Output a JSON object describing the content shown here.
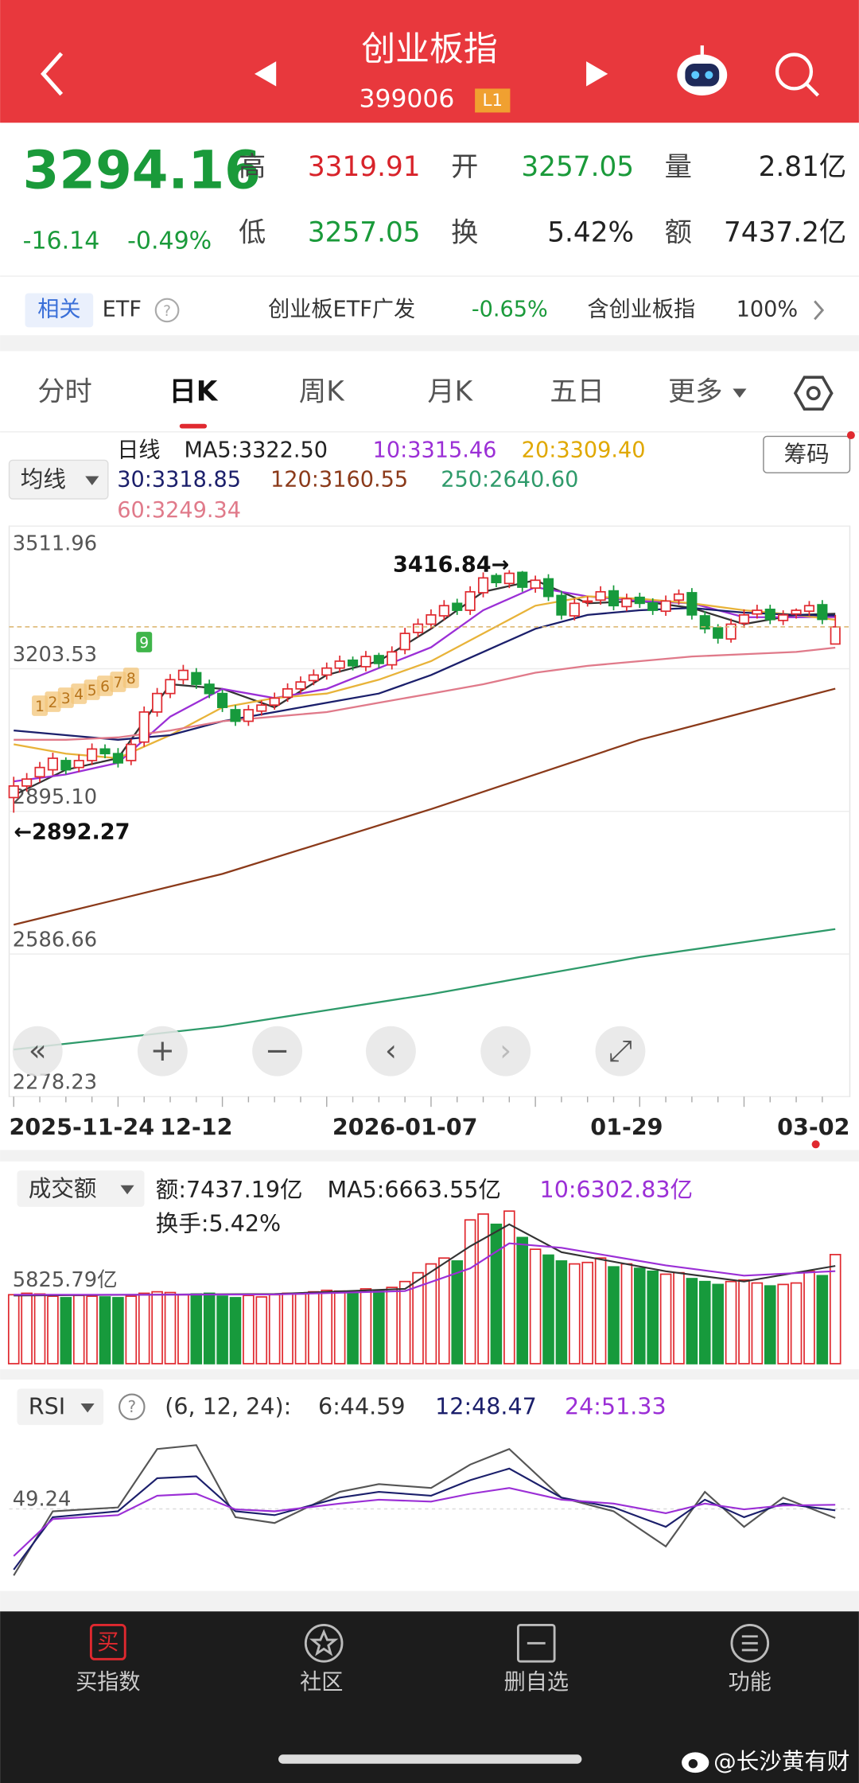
{
  "header": {
    "title": "创业板指",
    "code": "399006",
    "badge": "L1"
  },
  "quote": {
    "price": "3294.16",
    "change": "-16.14",
    "pct": "-0.49%",
    "row1": [
      {
        "label": "高",
        "value": "3319.91",
        "color": "#d8232a"
      },
      {
        "label": "开",
        "value": "3257.05",
        "color": "#1a9a3a"
      },
      {
        "label": "量",
        "value": "2.81亿",
        "color": "#222"
      }
    ],
    "row2": [
      {
        "label": "低",
        "value": "3257.05",
        "color": "#1a9a3a"
      },
      {
        "label": "换",
        "value": "5.42%",
        "color": "#222"
      },
      {
        "label": "额",
        "value": "7437.2亿",
        "color": "#222"
      }
    ]
  },
  "related": {
    "tag": "相关",
    "etf": "ETF",
    "fund": "创业板ETF广发",
    "fund_pct": "-0.65%",
    "holds": "含创业板指",
    "holds_pct": "100%"
  },
  "tabs": [
    "分时",
    "日K",
    "周K",
    "月K",
    "五日",
    "更多"
  ],
  "kline": {
    "ylim": [
      2278.23,
      3511.96
    ],
    "yticks": [
      3511.96,
      3203.53,
      {
        "value": 2895.1,
        "label": "2895.10"
      },
      2586.66,
      2278.23
    ],
    "open": [
      2925,
      2950,
      2970,
      2985,
      3005,
      2990,
      3005,
      3030,
      3020,
      3005,
      3045,
      3110,
      3150,
      3180,
      3195,
      3170,
      3150,
      3115,
      3090,
      3112,
      3125,
      3142,
      3160,
      3178,
      3190,
      3205,
      3222,
      3208,
      3232,
      3212,
      3245,
      3282,
      3300,
      3318,
      3345,
      3330,
      3368,
      3405,
      3388,
      3412,
      3378,
      3398,
      3362,
      3318,
      3348,
      3352,
      3372,
      3338,
      3358,
      3346,
      3328,
      3352,
      3368,
      3318,
      3292,
      3268,
      3302,
      3322,
      3332,
      3308,
      3322,
      3328,
      3342,
      3257.05
    ],
    "high": [
      2970,
      2978,
      3002,
      3022,
      3012,
      3018,
      3042,
      3040,
      3032,
      3052,
      3122,
      3162,
      3192,
      3212,
      3205,
      3180,
      3158,
      3125,
      3125,
      3135,
      3152,
      3172,
      3187,
      3202,
      3217,
      3232,
      3230,
      3242,
      3238,
      3252,
      3292,
      3312,
      3332,
      3352,
      3355,
      3382,
      3412,
      3410,
      3416.84,
      3415,
      3405,
      3408,
      3372,
      3355,
      3360,
      3382,
      3384,
      3366,
      3368,
      3356,
      3362,
      3375,
      3378,
      3328,
      3300,
      3312,
      3332,
      3342,
      3342,
      3330,
      3334,
      3350,
      3352,
      3319.91
    ],
    "low": [
      2892.27,
      2938,
      2958,
      2973,
      2975,
      2980,
      2995,
      3010,
      2990,
      2995,
      3035,
      3100,
      3140,
      3170,
      3160,
      3140,
      3110,
      3080,
      3080,
      3102,
      3115,
      3132,
      3150,
      3168,
      3180,
      3195,
      3200,
      3198,
      3205,
      3202,
      3235,
      3272,
      3290,
      3308,
      3320,
      3320,
      3358,
      3380,
      3378,
      3370,
      3368,
      3350,
      3310,
      3308,
      3338,
      3342,
      3330,
      3328,
      3335,
      3320,
      3318,
      3342,
      3310,
      3280,
      3258,
      3260,
      3292,
      3312,
      3300,
      3298,
      3312,
      3318,
      3300,
      3257.05
    ],
    "close": [
      2950,
      2965,
      2990,
      3010,
      2985,
      3005,
      3030,
      3020,
      3000,
      3040,
      3110,
      3150,
      3180,
      3200,
      3170,
      3150,
      3120,
      3090,
      3115,
      3125,
      3140,
      3160,
      3175,
      3190,
      3205,
      3220,
      3210,
      3230,
      3215,
      3240,
      3280,
      3300,
      3320,
      3340,
      3330,
      3370,
      3400,
      3390,
      3410,
      3380,
      3395,
      3360,
      3320,
      3345,
      3350,
      3370,
      3340,
      3355,
      3345,
      3330,
      3350,
      3365,
      3320,
      3290,
      3270,
      3300,
      3320,
      3330,
      3310,
      3320,
      3330,
      3340,
      3310.3,
      3294.16
    ],
    "up_color": "#e0292f",
    "down_color": "#179a3c",
    "ma": [
      {
        "color": "#333333",
        "x": [
          0,
          4,
          8,
          12,
          16,
          20,
          24,
          28,
          32,
          36,
          40,
          44,
          48,
          52,
          56,
          60,
          63
        ],
        "values": [
          2930,
          2985,
          3010,
          3170,
          3160,
          3120,
          3190,
          3220,
          3290,
          3370,
          3395,
          3345,
          3350,
          3335,
          3300,
          3320,
          3322.5
        ]
      },
      {
        "color": "#9b2fd6",
        "x": [
          0,
          4,
          8,
          12,
          16,
          20,
          24,
          28,
          32,
          36,
          40,
          44,
          48,
          52,
          56,
          60,
          63
        ],
        "values": [
          2960,
          2975,
          3000,
          3100,
          3160,
          3140,
          3160,
          3205,
          3250,
          3330,
          3380,
          3360,
          3350,
          3345,
          3315,
          3315,
          3315.46
        ]
      },
      {
        "color": "#e8b339",
        "x": [
          0,
          4,
          8,
          12,
          16,
          20,
          24,
          28,
          32,
          36,
          40,
          44,
          48,
          52,
          56,
          60,
          63
        ],
        "values": [
          3040,
          3020,
          3010,
          3060,
          3120,
          3140,
          3150,
          3180,
          3220,
          3280,
          3340,
          3360,
          3355,
          3345,
          3330,
          3320,
          3309.4
        ]
      },
      {
        "color": "#1b1f6b",
        "x": [
          0,
          4,
          8,
          12,
          16,
          20,
          24,
          28,
          32,
          36,
          40,
          44,
          48,
          52,
          56,
          60,
          63
        ],
        "values": [
          3070,
          3060,
          3050,
          3060,
          3090,
          3110,
          3130,
          3150,
          3190,
          3240,
          3290,
          3320,
          3330,
          3335,
          3325,
          3320,
          3318.85
        ]
      },
      {
        "color": "#e07a8a",
        "x": [
          0,
          4,
          8,
          12,
          16,
          20,
          24,
          28,
          32,
          36,
          40,
          44,
          48,
          52,
          56,
          60,
          63
        ],
        "values": [
          3050,
          3050,
          3055,
          3070,
          3090,
          3100,
          3110,
          3130,
          3150,
          3170,
          3195,
          3210,
          3220,
          3230,
          3235,
          3240,
          3249.34
        ]
      },
      {
        "color": "#8b3a1a",
        "x": [
          0,
          16,
          32,
          48,
          63
        ],
        "values": [
          2650,
          2760,
          2900,
          3050,
          3160.55
        ]
      },
      {
        "color": "#2e9a6a",
        "x": [
          0,
          16,
          32,
          48,
          63
        ],
        "values": [
          2380,
          2430,
          2500,
          2580,
          2640.6
        ]
      }
    ],
    "legend": [
      {
        "text": "日线",
        "color": "#222"
      },
      {
        "text": "MA5:3322.50",
        "color": "#222"
      },
      {
        "text": "10:3315.46",
        "color": "#9b2fd6"
      },
      {
        "text": "20:3309.40",
        "color": "#e0a800"
      },
      {
        "text": "30:3318.85",
        "color": "#1b1f6b"
      },
      {
        "text": "120:3160.55",
        "color": "#8b3a1a"
      },
      {
        "text": "250:2640.60",
        "color": "#2e9a6a"
      },
      {
        "text": "60:3249.34",
        "color": "#e07a8a"
      }
    ],
    "buttons": [
      "均线",
      "筹码"
    ],
    "annotations": [
      "3416.84→",
      "←2892.27"
    ],
    "td": [
      "1",
      "2",
      "3",
      "4",
      "5",
      "6",
      "7",
      "8",
      "9"
    ],
    "x_labels": [
      "2025-11-24",
      "12-12",
      "2026-01-07",
      "01-29",
      "03-02"
    ]
  },
  "volume": {
    "button": "成交额",
    "ylim": [
      0,
      11000
    ],
    "ref": {
      "value": 5825.79,
      "label": "5825.79亿"
    },
    "values": [
      4700,
      4800,
      4750,
      4600,
      4500,
      4650,
      4600,
      4550,
      4500,
      4600,
      4800,
      4900,
      4850,
      4700,
      4750,
      4800,
      4600,
      4500,
      4650,
      4550,
      4700,
      4800,
      4750,
      4900,
      5000,
      4950,
      4850,
      5100,
      5000,
      5200,
      5600,
      6200,
      6800,
      7200,
      7000,
      9800,
      10200,
      9500,
      10400,
      8600,
      7800,
      7400,
      7000,
      6800,
      6900,
      7200,
      6600,
      6800,
      6500,
      6300,
      6100,
      6200,
      5800,
      5600,
      5400,
      5600,
      5700,
      5500,
      5300,
      5400,
      5500,
      6300,
      6000,
      7437.19
    ],
    "ma": [
      {
        "color": "#333333",
        "x": [
          0,
          10,
          20,
          30,
          35,
          38,
          42,
          50,
          56,
          63
        ],
        "values": [
          4650,
          4700,
          4750,
          5100,
          8000,
          9500,
          7600,
          6300,
          5600,
          6663.55
        ]
      },
      {
        "color": "#9b2fd6",
        "x": [
          0,
          10,
          20,
          30,
          35,
          38,
          42,
          50,
          56,
          63
        ],
        "values": [
          4700,
          4700,
          4720,
          4950,
          6500,
          8200,
          7900,
          6700,
          6000,
          6302.83
        ]
      }
    ],
    "legend": [
      {
        "text": "额:7437.19亿",
        "color": "#222"
      },
      {
        "text": "MA5:6663.55亿",
        "color": "#222"
      },
      {
        "text": "10:6302.83亿",
        "color": "#9b2fd6"
      },
      {
        "text": "换手:5.42%",
        "color": "#222"
      }
    ]
  },
  "rsi": {
    "button": "RSI",
    "params": "(6, 12, 24):",
    "ylim": [
      10,
      90
    ],
    "ref": 49.24,
    "series": [
      {
        "color": "#555555",
        "x": [
          0,
          3,
          8,
          11,
          14,
          17,
          20,
          25,
          28,
          32,
          35,
          38,
          42,
          46,
          50,
          53,
          56,
          59,
          63
        ],
        "values": [
          15,
          48,
          50,
          80,
          82,
          45,
          42,
          58,
          62,
          60,
          72,
          80,
          55,
          48,
          30,
          58,
          40,
          55,
          44.59
        ]
      },
      {
        "color": "#1b1f6b",
        "x": [
          0,
          3,
          8,
          11,
          14,
          17,
          20,
          25,
          28,
          32,
          35,
          38,
          42,
          46,
          50,
          53,
          56,
          59,
          63
        ],
        "values": [
          18,
          45,
          48,
          65,
          66,
          48,
          46,
          55,
          58,
          56,
          64,
          70,
          55,
          50,
          40,
          54,
          45,
          52,
          48.47
        ]
      },
      {
        "color": "#9b2fd6",
        "x": [
          0,
          3,
          8,
          11,
          14,
          17,
          20,
          25,
          28,
          32,
          35,
          38,
          42,
          46,
          50,
          53,
          56,
          59,
          63
        ],
        "values": [
          25,
          44,
          46,
          56,
          57,
          49,
          48,
          52,
          54,
          53,
          57,
          60,
          54,
          52,
          47,
          52,
          49,
          51,
          51.33
        ]
      }
    ],
    "legend": [
      {
        "text": "6:44.59",
        "color": "#333"
      },
      {
        "text": "12:48.47",
        "color": "#1b1f6b"
      },
      {
        "text": "24:51.33",
        "color": "#9b2fd6"
      }
    ]
  },
  "nav": {
    "icon": "买",
    "items": [
      "买指数",
      "社区",
      "删自选",
      "功能"
    ]
  },
  "watermark": "@长沙黄有财"
}
